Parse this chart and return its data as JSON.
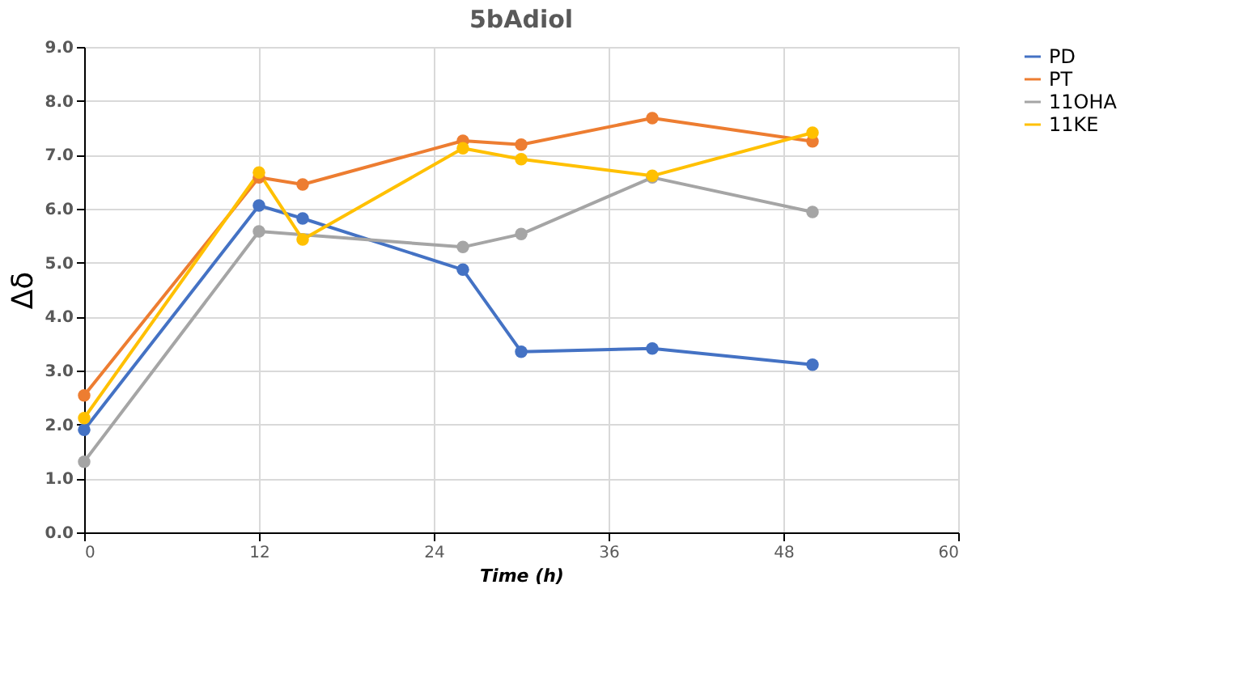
{
  "chart_data": {
    "type": "line",
    "title": "5bAdiol",
    "xlabel": "Time (h)",
    "ylabel": "Δδ",
    "series": [
      {
        "name": "PD",
        "color": "#4472c4",
        "x": [
          0,
          12,
          15,
          26,
          30,
          39,
          50
        ],
        "values": [
          1.9,
          6.06,
          5.82,
          4.87,
          3.35,
          3.41,
          3.11
        ]
      },
      {
        "name": "PT",
        "color": "#ed7d31",
        "x": [
          0,
          12,
          15,
          26,
          30,
          39,
          50
        ],
        "values": [
          2.54,
          6.58,
          6.45,
          7.26,
          7.19,
          7.68,
          7.25
        ]
      },
      {
        "name": "11OHA",
        "color": "#a5a5a5",
        "x": [
          0,
          12,
          26,
          30,
          39,
          50
        ],
        "values": [
          1.31,
          5.58,
          5.29,
          5.53,
          6.58,
          5.94
        ]
      },
      {
        "name": "11KE",
        "color": "#ffc000",
        "x": [
          0,
          12,
          15,
          26,
          30,
          39,
          50
        ],
        "values": [
          2.12,
          6.67,
          5.43,
          7.12,
          6.92,
          6.61,
          7.41
        ]
      }
    ],
    "xlim": [
      0,
      60
    ],
    "xticks": [
      0,
      12,
      24,
      36,
      48,
      60
    ],
    "ylim": [
      0,
      9
    ],
    "yticks": [
      {
        "value": 0,
        "label": "0.0"
      },
      {
        "value": 1,
        "label": "1.0"
      },
      {
        "value": 2,
        "label": "2.0"
      },
      {
        "value": 3,
        "label": "3.0"
      },
      {
        "value": 4,
        "label": "4.0"
      },
      {
        "value": 5,
        "label": "5.0"
      },
      {
        "value": 6,
        "label": "6.0"
      },
      {
        "value": 7,
        "label": "7.0"
      },
      {
        "value": 8,
        "label": "8.0"
      },
      {
        "value": 9,
        "label": "9.0"
      }
    ],
    "grid": true,
    "legend": "right",
    "marker": "circle",
    "line_style": "solid"
  }
}
